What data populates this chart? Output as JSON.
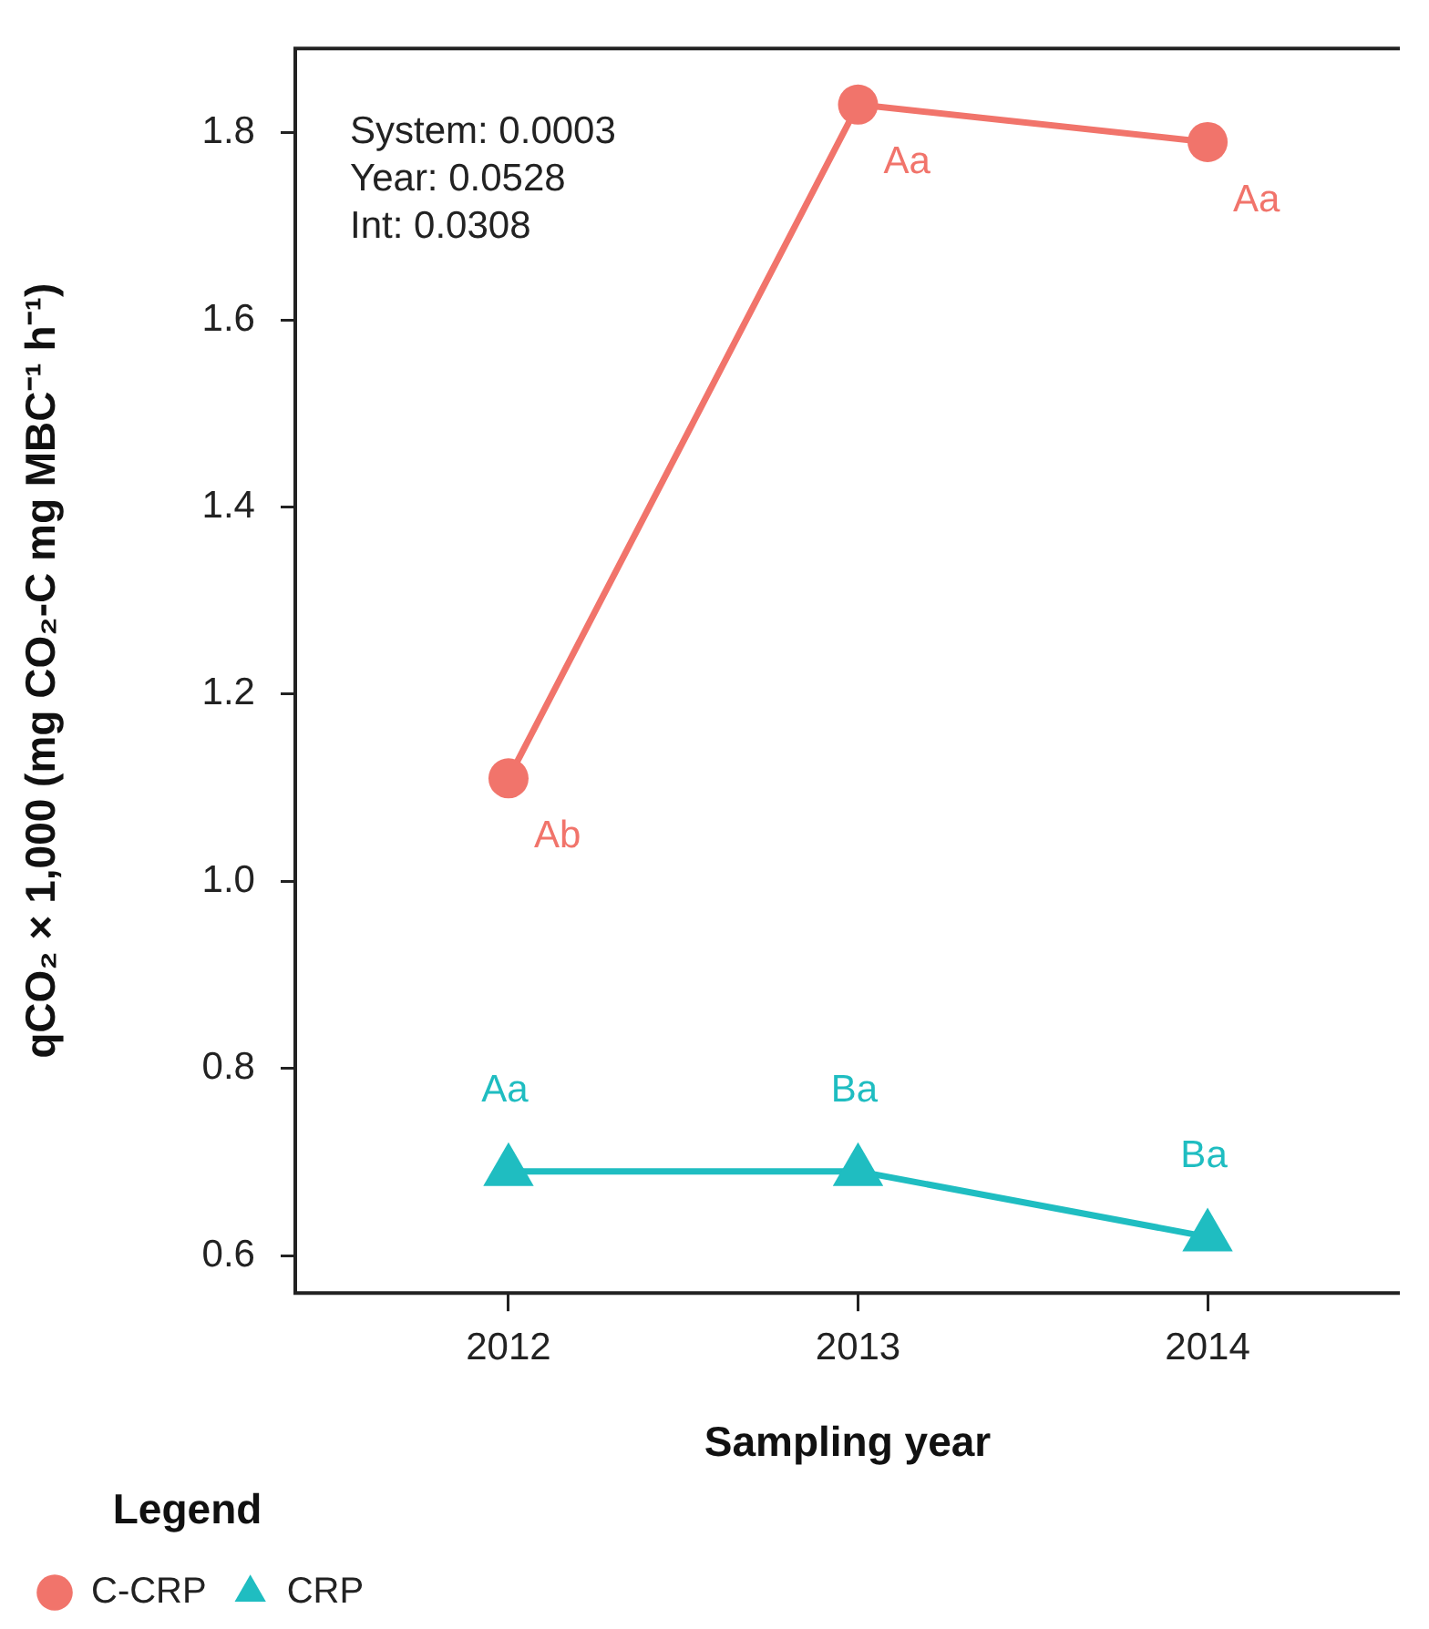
{
  "chart_data": {
    "type": "line",
    "xlabel": "Sampling year",
    "ylabel": "qCO₂ × 1,000 (mg CO₂-C mg MBC⁻¹ h⁻¹)",
    "legend_title": "Legend",
    "legend": "bottom left",
    "grid": false,
    "x": [
      2012,
      2013,
      2014
    ],
    "xlim": [
      2011.39,
      2014.55
    ],
    "xticks": [
      2012,
      2013,
      2014
    ],
    "ylim": [
      0.56,
      1.89
    ],
    "yticks": [
      {
        "value": 0.6,
        "label": "0.6"
      },
      {
        "value": 0.8,
        "label": "0.8"
      },
      {
        "value": 1.0,
        "label": "1.0"
      },
      {
        "value": 1.2,
        "label": "1.2"
      },
      {
        "value": 1.4,
        "label": "1.4"
      },
      {
        "value": 1.6,
        "label": "1.6"
      },
      {
        "value": 1.8,
        "label": "1.8"
      }
    ],
    "series": [
      {
        "name": "C-CRP",
        "color": "#f1746b",
        "marker": "circle",
        "values": [
          1.11,
          1.83,
          1.79
        ]
      },
      {
        "name": "CRP",
        "color": "#1fbdc1",
        "marker": "triangle",
        "values": [
          0.69,
          0.69,
          0.62
        ]
      }
    ],
    "annotations": [
      "System: 0.0003",
      "Year: 0.0528",
      "Int: 0.0308",
      {
        "text": "Ab",
        "x": 2012,
        "y": 1.11
      },
      {
        "text": "Aa",
        "x": 2013,
        "y": 1.83
      },
      {
        "text": "Aa",
        "x": 2014,
        "y": 1.79
      },
      {
        "text": "Aa",
        "x": 2012,
        "y": 0.69
      },
      {
        "text": "Ba",
        "x": 2013,
        "y": 0.69
      },
      {
        "text": "Ba",
        "x": 2014,
        "y": 0.62
      }
    ]
  }
}
